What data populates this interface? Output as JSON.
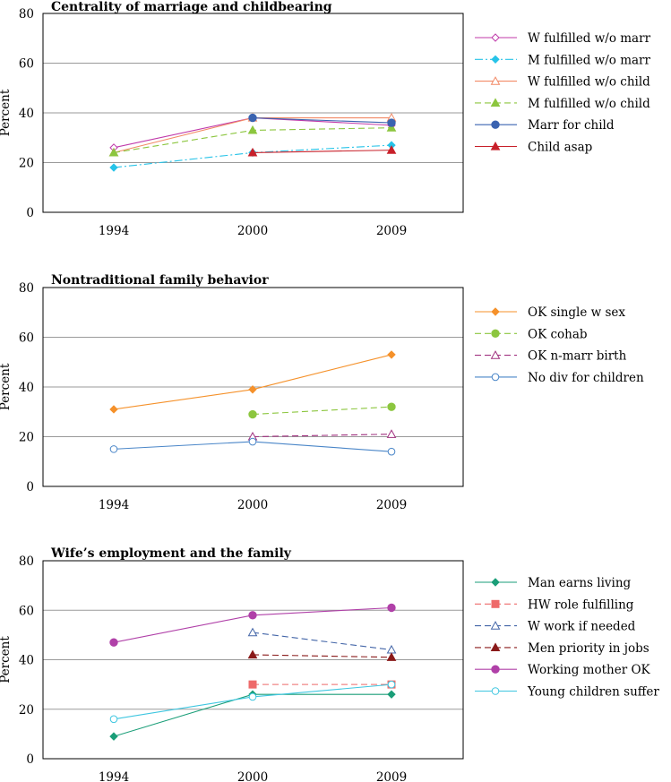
{
  "chart_data": [
    {
      "type": "line",
      "title": "Centrality of marriage and childbearing",
      "ylabel": "Percent",
      "xlabel": "",
      "categories": [
        "1994",
        "2000",
        "2009"
      ],
      "ylim": [
        0,
        80
      ],
      "yticks": [
        0,
        20,
        40,
        60,
        80
      ],
      "grid": true,
      "legend_position": "right",
      "series": [
        {
          "name": "W fulfilled w/o marr",
          "values": [
            26,
            38,
            35
          ],
          "color": "#c03aaa",
          "marker": "diamond-open",
          "dash": "solid"
        },
        {
          "name": "M fulfilled w/o marr",
          "values": [
            18,
            24,
            27
          ],
          "color": "#27c3e8",
          "marker": "diamond",
          "dash": "dashdot"
        },
        {
          "name": "W fulfilled w/o child",
          "values": [
            24,
            38,
            38
          ],
          "color": "#f28a66",
          "marker": "triangle-open",
          "dash": "solid"
        },
        {
          "name": "M fulfilled w/o child",
          "values": [
            24,
            33,
            34
          ],
          "color": "#8cc63f",
          "marker": "triangle",
          "dash": "dash"
        },
        {
          "name": "Marr for child",
          "values": [
            null,
            38,
            36
          ],
          "color": "#3a63b0",
          "marker": "circle",
          "dash": "solid"
        },
        {
          "name": "Child asap",
          "values": [
            null,
            24,
            25
          ],
          "color": "#c8202a",
          "marker": "triangle",
          "dash": "solid"
        }
      ]
    },
    {
      "type": "line",
      "title": "Nontraditional family behavior",
      "ylabel": "Percent",
      "xlabel": "",
      "categories": [
        "1994",
        "2000",
        "2009"
      ],
      "ylim": [
        0,
        80
      ],
      "yticks": [
        0,
        20,
        40,
        60,
        80
      ],
      "grid": true,
      "legend_position": "right",
      "series": [
        {
          "name": "OK single w sex",
          "values": [
            31,
            39,
            53
          ],
          "color": "#f5912a",
          "marker": "diamond",
          "dash": "solid"
        },
        {
          "name": "OK cohab",
          "values": [
            null,
            29,
            32
          ],
          "color": "#8cc63f",
          "marker": "circle",
          "dash": "dash"
        },
        {
          "name": "OK n-marr birth",
          "values": [
            null,
            20,
            21
          ],
          "color": "#a0307f",
          "marker": "triangle-open",
          "dash": "dash"
        },
        {
          "name": "No div for children",
          "values": [
            15,
            18,
            14
          ],
          "color": "#4a86c8",
          "marker": "circle-open",
          "dash": "solid"
        }
      ]
    },
    {
      "type": "line",
      "title": "Wife’s employment and the family",
      "ylabel": "Percent",
      "xlabel": "",
      "categories": [
        "1994",
        "2000",
        "2009"
      ],
      "ylim": [
        0,
        80
      ],
      "yticks": [
        0,
        20,
        40,
        60,
        80
      ],
      "grid": true,
      "legend_position": "right",
      "series": [
        {
          "name": "Man earns living",
          "values": [
            9,
            26,
            26
          ],
          "color": "#1a9e78",
          "marker": "diamond",
          "dash": "solid"
        },
        {
          "name": "HW role fulfilling",
          "values": [
            null,
            30,
            30
          ],
          "color": "#ee6a6a",
          "marker": "square",
          "dash": "dash"
        },
        {
          "name": "W work if needed",
          "values": [
            null,
            51,
            44
          ],
          "color": "#4466a8",
          "marker": "triangle-open",
          "dash": "dash"
        },
        {
          "name": "Men priority in jobs",
          "values": [
            null,
            42,
            41
          ],
          "color": "#8a1a1a",
          "marker": "triangle",
          "dash": "dash"
        },
        {
          "name": "Working mother OK",
          "values": [
            47,
            58,
            61
          ],
          "color": "#b040a8",
          "marker": "circle",
          "dash": "solid"
        },
        {
          "name": "Young children suffer",
          "values": [
            16,
            25,
            30
          ],
          "color": "#3ec6e0",
          "marker": "circle-open",
          "dash": "solid"
        }
      ]
    }
  ]
}
